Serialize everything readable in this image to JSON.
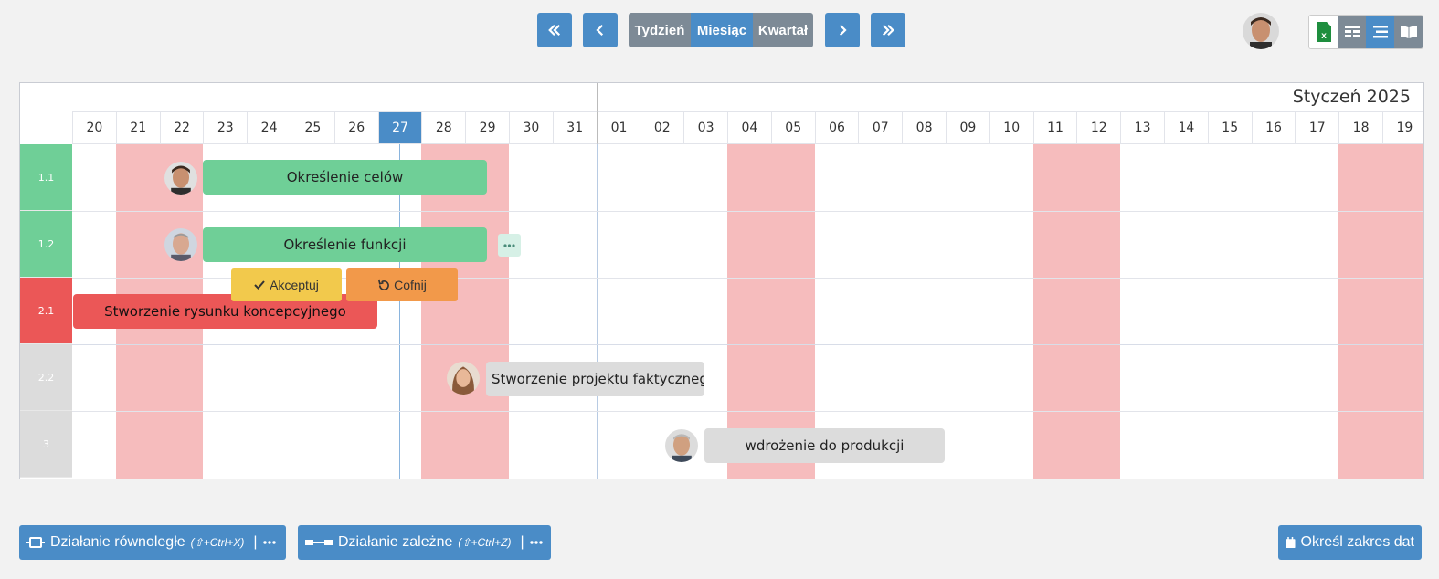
{
  "nav": {
    "first_icon": "double-chevron-left-icon",
    "prev_icon": "chevron-left-icon",
    "next_icon": "chevron-right-icon",
    "last_icon": "double-chevron-right-icon",
    "periods": [
      "Tydzień",
      "Miesiąc",
      "Kwartał"
    ],
    "active_period": "Miesiąc"
  },
  "colors": {
    "accent": "#4a8cc7",
    "inactive": "#7d8a96",
    "weekend": "#f6bcbd",
    "green": "#6fcf97",
    "red": "#eb5757",
    "grey": "#dcdcdc",
    "yellow": "#f2c94c",
    "orange": "#f2994a"
  },
  "header": {
    "month": "Styczeń 2025"
  },
  "days": [
    "20",
    "21",
    "22",
    "23",
    "24",
    "25",
    "26",
    "27",
    "28",
    "29",
    "30",
    "31",
    "01",
    "02",
    "03",
    "04",
    "05",
    "06",
    "07",
    "08",
    "09",
    "10",
    "11",
    "12",
    "13",
    "14",
    "15",
    "16",
    "17",
    "18",
    "19"
  ],
  "today": "27",
  "rows": [
    {
      "id": "1.1",
      "status": "green"
    },
    {
      "id": "1.2",
      "status": "green"
    },
    {
      "id": "2.1",
      "status": "red"
    },
    {
      "id": "2.2",
      "status": "grey"
    },
    {
      "id": "3",
      "status": "grey"
    }
  ],
  "tasks": [
    {
      "label": "Określenie celów",
      "color": "green"
    },
    {
      "label": "Określenie funkcji",
      "color": "green"
    },
    {
      "label": "Stworzenie rysunku koncepcyjnego",
      "color": "red"
    },
    {
      "label": "Stworzenie projektu faktycznego",
      "color": "grey"
    },
    {
      "label": "wdrożenie do produkcji",
      "color": "grey"
    }
  ],
  "actions": {
    "accept": "Akceptuj",
    "undo": "Cofnij"
  },
  "bottom": {
    "parallel_label": "Działanie równoległe",
    "parallel_shortcut": "(⇧+Ctrl+X)",
    "dependent_label": "Działanie zależne",
    "dependent_shortcut": "(⇧+Ctrl+Z)",
    "range_label": "Określ zakres dat"
  },
  "toolbar_icons": [
    "excel-icon",
    "table-icon",
    "list-icon",
    "book-icon"
  ]
}
